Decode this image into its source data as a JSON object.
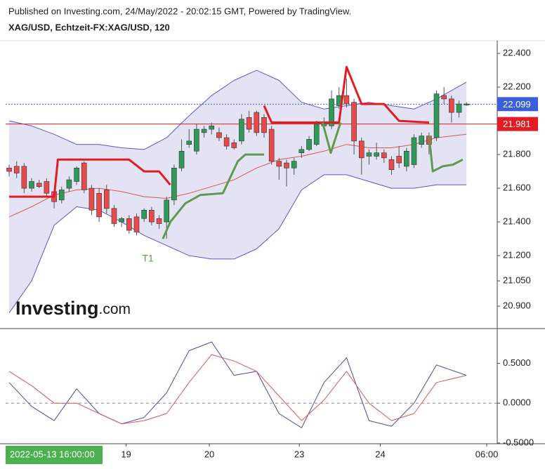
{
  "header": {
    "published": "Published on Investing.com, 24/May/2022 - 20:02:15 GMT, Powered by TradingView.",
    "logo_main": "Investing",
    "logo_suffix": ".com",
    "timestamp": "2022-05-13 16:00:00"
  },
  "chart_data": [
    {
      "type": "candlestick",
      "title": "XAG/USD, Echtzeit-FX:XAG/USD, 120",
      "x": [
        0,
        1,
        2,
        3,
        4,
        5,
        6,
        7,
        8,
        9,
        10,
        11,
        12,
        13,
        14,
        15,
        16,
        17,
        18,
        19,
        20,
        21,
        22,
        23,
        24,
        25,
        26,
        27,
        28,
        29,
        30,
        31,
        32,
        33,
        34,
        35,
        36,
        37,
        38,
        39,
        40,
        41,
        42,
        43,
        44,
        45,
        46,
        47,
        48,
        49,
        50,
        51,
        52,
        53,
        54,
        55,
        56,
        57,
        58,
        59,
        60,
        61
      ],
      "open": [
        21.72,
        21.73,
        21.73,
        21.6,
        21.63,
        21.64,
        21.58,
        21.53,
        21.6,
        21.64,
        21.75,
        21.6,
        21.57,
        21.59,
        21.48,
        21.4,
        21.42,
        21.43,
        21.42,
        21.47,
        21.42,
        21.4,
        21.53,
        21.72,
        21.86,
        21.82,
        21.93,
        21.95,
        21.93,
        21.9,
        21.87,
        21.88,
        22.02,
        22.05,
        22.02,
        21.95,
        21.76,
        21.75,
        21.72,
        21.81,
        21.83,
        21.86,
        21.97,
        21.97,
        22.09,
        22.15,
        22.11,
        21.88,
        21.79,
        21.79,
        21.81,
        21.77,
        21.79,
        21.73,
        21.74,
        21.86,
        21.91,
        21.9,
        22.15,
        22.13,
        22.05,
        22.1
      ],
      "high": [
        21.74,
        21.76,
        21.75,
        21.66,
        21.65,
        21.66,
        21.6,
        21.61,
        21.67,
        21.73,
        21.76,
        21.62,
        21.6,
        21.62,
        21.5,
        21.43,
        21.44,
        21.45,
        21.48,
        21.49,
        21.44,
        21.55,
        21.74,
        21.89,
        21.95,
        21.98,
        21.97,
        21.99,
        21.96,
        21.92,
        21.89,
        22.04,
        22.06,
        22.06,
        22.04,
        21.97,
        21.78,
        21.77,
        21.78,
        21.85,
        21.91,
        22.0,
        22.02,
        22.18,
        22.2,
        22.25,
        22.13,
        21.9,
        21.83,
        21.87,
        21.83,
        21.79,
        21.85,
        21.84,
        21.92,
        21.93,
        21.93,
        22.18,
        22.2,
        22.15,
        22.12,
        22.11
      ],
      "low": [
        21.67,
        21.66,
        21.57,
        21.58,
        21.6,
        21.55,
        21.48,
        21.51,
        21.58,
        21.62,
        21.57,
        21.44,
        21.4,
        21.45,
        21.37,
        21.37,
        21.33,
        21.32,
        21.4,
        21.38,
        21.36,
        21.3,
        21.5,
        21.7,
        21.84,
        21.8,
        21.9,
        21.92,
        21.88,
        21.83,
        21.83,
        21.86,
        21.93,
        21.91,
        21.9,
        21.74,
        21.65,
        21.61,
        21.68,
        21.78,
        21.82,
        21.85,
        21.95,
        21.95,
        22.07,
        22.08,
        21.8,
        21.68,
        21.74,
        21.77,
        21.75,
        21.68,
        21.72,
        21.7,
        21.72,
        21.84,
        21.8,
        21.88,
        22.1,
        21.99,
        22.02,
        22.09
      ],
      "close": [
        21.7,
        21.69,
        21.6,
        21.64,
        21.61,
        21.57,
        21.52,
        21.59,
        21.65,
        21.72,
        21.59,
        21.47,
        21.43,
        21.48,
        21.39,
        21.42,
        21.35,
        21.34,
        21.47,
        21.4,
        21.39,
        21.53,
        21.72,
        21.82,
        21.88,
        21.95,
        21.95,
        21.97,
        21.9,
        21.85,
        21.84,
        22.01,
        21.95,
        21.93,
        21.93,
        21.76,
        21.73,
        21.72,
        21.76,
        21.83,
        21.89,
        21.98,
        21.99,
        22.13,
        22.15,
        22.1,
        21.88,
        21.78,
        21.81,
        21.81,
        21.78,
        21.71,
        21.75,
        21.82,
        21.9,
        21.91,
        21.86,
        22.16,
        22.13,
        22.05,
        22.1,
        22.1
      ],
      "up_color": "#2f9a57",
      "down_color": "#e84a4a",
      "wick_color": "#555555",
      "band_fill": "#e3e3f3",
      "series": [
        {
          "color": "#5757d6",
          "width": 1,
          "x": [
            0,
            3,
            6,
            9,
            12,
            15,
            18,
            21,
            24,
            27,
            30,
            33,
            36,
            39,
            42,
            45,
            48,
            51,
            54,
            57,
            61
          ],
          "values": [
            22.0,
            21.97,
            21.92,
            21.86,
            21.86,
            21.84,
            21.83,
            21.9,
            22.03,
            22.15,
            22.24,
            22.3,
            22.24,
            22.11,
            22.07,
            22.09,
            22.11,
            22.09,
            22.07,
            22.13,
            22.23
          ]
        },
        {
          "color": "#5757d6",
          "width": 1,
          "x": [
            0,
            3,
            6,
            9,
            12,
            15,
            18,
            21,
            24,
            27,
            30,
            33,
            36,
            39,
            42,
            45,
            48,
            51,
            54,
            57,
            61
          ],
          "values": [
            20.86,
            21.05,
            21.38,
            21.49,
            21.47,
            21.4,
            21.32,
            21.26,
            21.2,
            21.18,
            21.18,
            21.24,
            21.36,
            21.59,
            21.68,
            21.68,
            21.64,
            21.6,
            21.6,
            21.62,
            21.62
          ]
        },
        {
          "color": "#e05555",
          "width": 1,
          "x": [
            0,
            3,
            6,
            9,
            12,
            15,
            18,
            21,
            24,
            27,
            30,
            33,
            36,
            39,
            42,
            45,
            48,
            51,
            54,
            57,
            61
          ],
          "values": [
            21.43,
            21.49,
            21.56,
            21.59,
            21.6,
            21.58,
            21.55,
            21.54,
            21.57,
            21.61,
            21.65,
            21.72,
            21.77,
            21.79,
            21.82,
            21.86,
            21.84,
            21.84,
            21.86,
            21.9,
            21.92
          ]
        },
        {
          "color": "#e31b23",
          "width": 3,
          "x": [
            0,
            6,
            6.5,
            16,
            18,
            20,
            21.5,
            27,
            34,
            35,
            36,
            43,
            44,
            45,
            47,
            50,
            52,
            56
          ],
          "values": [
            21.55,
            21.55,
            21.77,
            21.77,
            21.7,
            21.7,
            21.62,
            null,
            22.09,
            21.99,
            21.99,
            21.99,
            21.99,
            22.32,
            22.1,
            22.1,
            22.0,
            21.99
          ]
        },
        {
          "color": "#5f9a4f",
          "width": 3,
          "x": [
            20.5,
            21.5,
            23.5,
            25.5,
            28.5,
            30.5,
            31.5,
            34,
            38,
            41.8,
            42.9,
            44.2,
            50,
            56,
            56.5,
            57.8,
            59.2,
            60.5
          ],
          "values": [
            21.3,
            21.4,
            21.51,
            21.56,
            21.57,
            21.76,
            21.8,
            21.8,
            null,
            21.99,
            21.81,
            21.99,
            null,
            21.91,
            21.7,
            21.73,
            21.74,
            21.77
          ]
        }
      ],
      "price_lines": [
        {
          "value": 22.099,
          "color": "#3a5fd8"
        },
        {
          "value": 21.981,
          "color": "#e31b23"
        }
      ],
      "annotations": [
        {
          "text": "T1",
          "x": 18.5,
          "y": 21.18,
          "color": "#5f9a4f"
        }
      ],
      "ylim": [
        20.767,
        22.467
      ],
      "yticks": [
        {
          "value": 22.4,
          "label": "22.400"
        },
        {
          "value": 22.2,
          "label": "22.200"
        },
        {
          "value": 21.8,
          "label": "21.800"
        },
        {
          "value": 21.6,
          "label": "21.600"
        },
        {
          "value": 21.4,
          "label": "21.400"
        },
        {
          "value": 21.2,
          "label": "21.200"
        },
        {
          "value": 21.05,
          "label": "21.050"
        },
        {
          "value": 20.9,
          "label": "20.900"
        }
      ],
      "xlim": [
        -0.47,
        65.1
      ],
      "xticks": [
        {
          "value": 15.6,
          "label": "19"
        },
        {
          "value": 26.7,
          "label": "20"
        },
        {
          "value": 38.7,
          "label": "23"
        },
        {
          "value": 49.5,
          "label": "24"
        },
        {
          "value": 63.7,
          "label": "06:00"
        }
      ]
    },
    {
      "type": "line",
      "zero_line": true,
      "x": [
        0,
        3,
        6,
        9,
        12,
        15,
        18,
        21,
        24,
        27,
        30,
        33,
        36,
        39,
        42,
        45,
        48,
        51,
        54,
        57,
        61
      ],
      "series": [
        {
          "color": "#4a4aa8",
          "values": [
            0.26,
            -0.04,
            -0.22,
            0.18,
            -0.13,
            -0.26,
            -0.18,
            0.13,
            0.66,
            0.77,
            0.35,
            0.4,
            -0.13,
            -0.31,
            0.26,
            0.57,
            -0.22,
            -0.29,
            0.0,
            0.48,
            0.35
          ]
        },
        {
          "color": "#e05555",
          "values": [
            0.4,
            0.22,
            0.0,
            0.0,
            -0.13,
            -0.26,
            -0.22,
            -0.13,
            0.26,
            0.61,
            0.53,
            0.4,
            0.09,
            -0.22,
            0.04,
            0.4,
            0.0,
            -0.22,
            -0.13,
            0.26,
            0.35
          ]
        }
      ],
      "ylim": [
        -0.51,
        0.92
      ],
      "yticks": [
        {
          "value": 0.5,
          "label": "0.5000"
        },
        {
          "value": 0,
          "label": "0.0000"
        },
        {
          "value": -0.5,
          "label": "-0.5000"
        }
      ]
    }
  ]
}
